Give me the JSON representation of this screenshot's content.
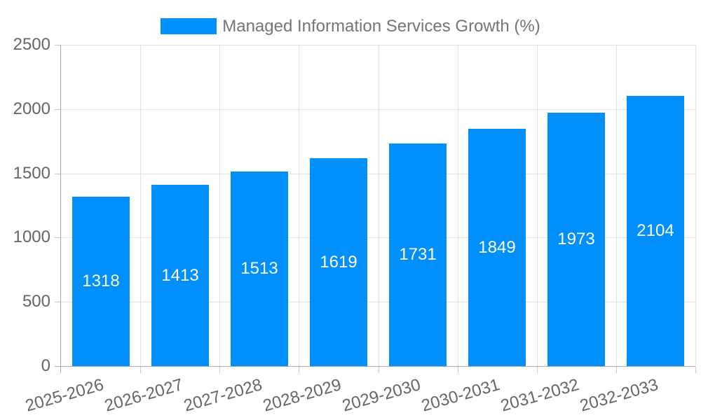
{
  "legend": {
    "label": "Managed Information Services Growth (%)"
  },
  "chart_data": {
    "type": "bar",
    "title": "Managed Information Services Growth (%)",
    "categories": [
      "2025-2026",
      "2026-2027",
      "2027-2028",
      "2028-2029",
      "2029-2030",
      "2030-2031",
      "2031-2032",
      "2032-2033"
    ],
    "values": [
      1318,
      1413,
      1513,
      1619,
      1731,
      1849,
      1973,
      2104
    ],
    "xlabel": "",
    "ylabel": "",
    "ylim": [
      0,
      2500
    ],
    "yticks": [
      0,
      500,
      1000,
      1500,
      2000,
      2500
    ],
    "grid": true,
    "legend_position": "top",
    "bar_color": "#008FFB",
    "value_label_color": "#ffffff"
  },
  "colors": {
    "bar": "#008FFB",
    "grid": "#e2e2e2",
    "axis": "#ababab",
    "tick": "#c6c6c6",
    "tick_label": "#666666",
    "legend_label": "#757575",
    "background": "#ffffff"
  }
}
